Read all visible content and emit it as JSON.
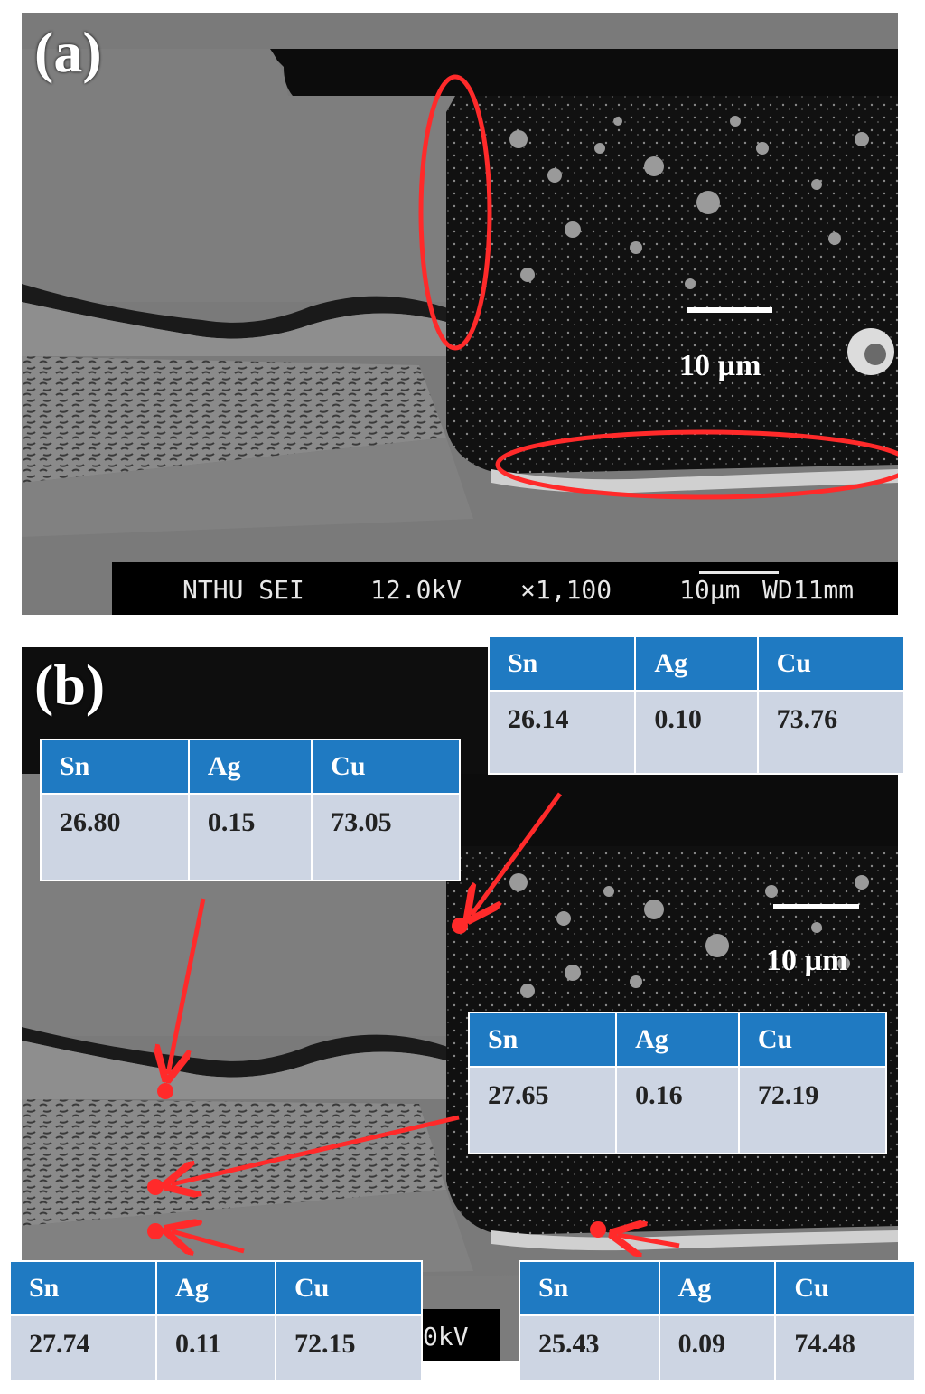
{
  "panel_a": {
    "label": "(a)",
    "scale_text": "10 µm",
    "info_bar": {
      "sei": "NTHU SEI",
      "kv": "12.0kV",
      "mag": "×1,100",
      "scale": "10μm",
      "wd": "WD11mm"
    }
  },
  "panel_b": {
    "label": "(b)",
    "scale_text": "10 µm",
    "info_fragment": "0kV"
  },
  "tables": [
    {
      "headers": [
        "Sn",
        "Ag",
        "Cu"
      ],
      "values": [
        "26.14",
        "0.10",
        "73.76"
      ]
    },
    {
      "headers": [
        "Sn",
        "Ag",
        "Cu"
      ],
      "values": [
        "26.80",
        "0.15",
        "73.05"
      ]
    },
    {
      "headers": [
        "Sn",
        "Ag",
        "Cu"
      ],
      "values": [
        "27.65",
        "0.16",
        "72.19"
      ]
    },
    {
      "headers": [
        "Sn",
        "Ag",
        "Cu"
      ],
      "values": [
        "27.74",
        "0.11",
        "72.15"
      ]
    },
    {
      "headers": [
        "Sn",
        "Ag",
        "Cu"
      ],
      "values": [
        "25.43",
        "0.09",
        "74.48"
      ]
    }
  ],
  "colors": {
    "table_header": "#1f7ac2",
    "table_cell": "#cdd5e3",
    "annotation": "#ff2a2a"
  }
}
